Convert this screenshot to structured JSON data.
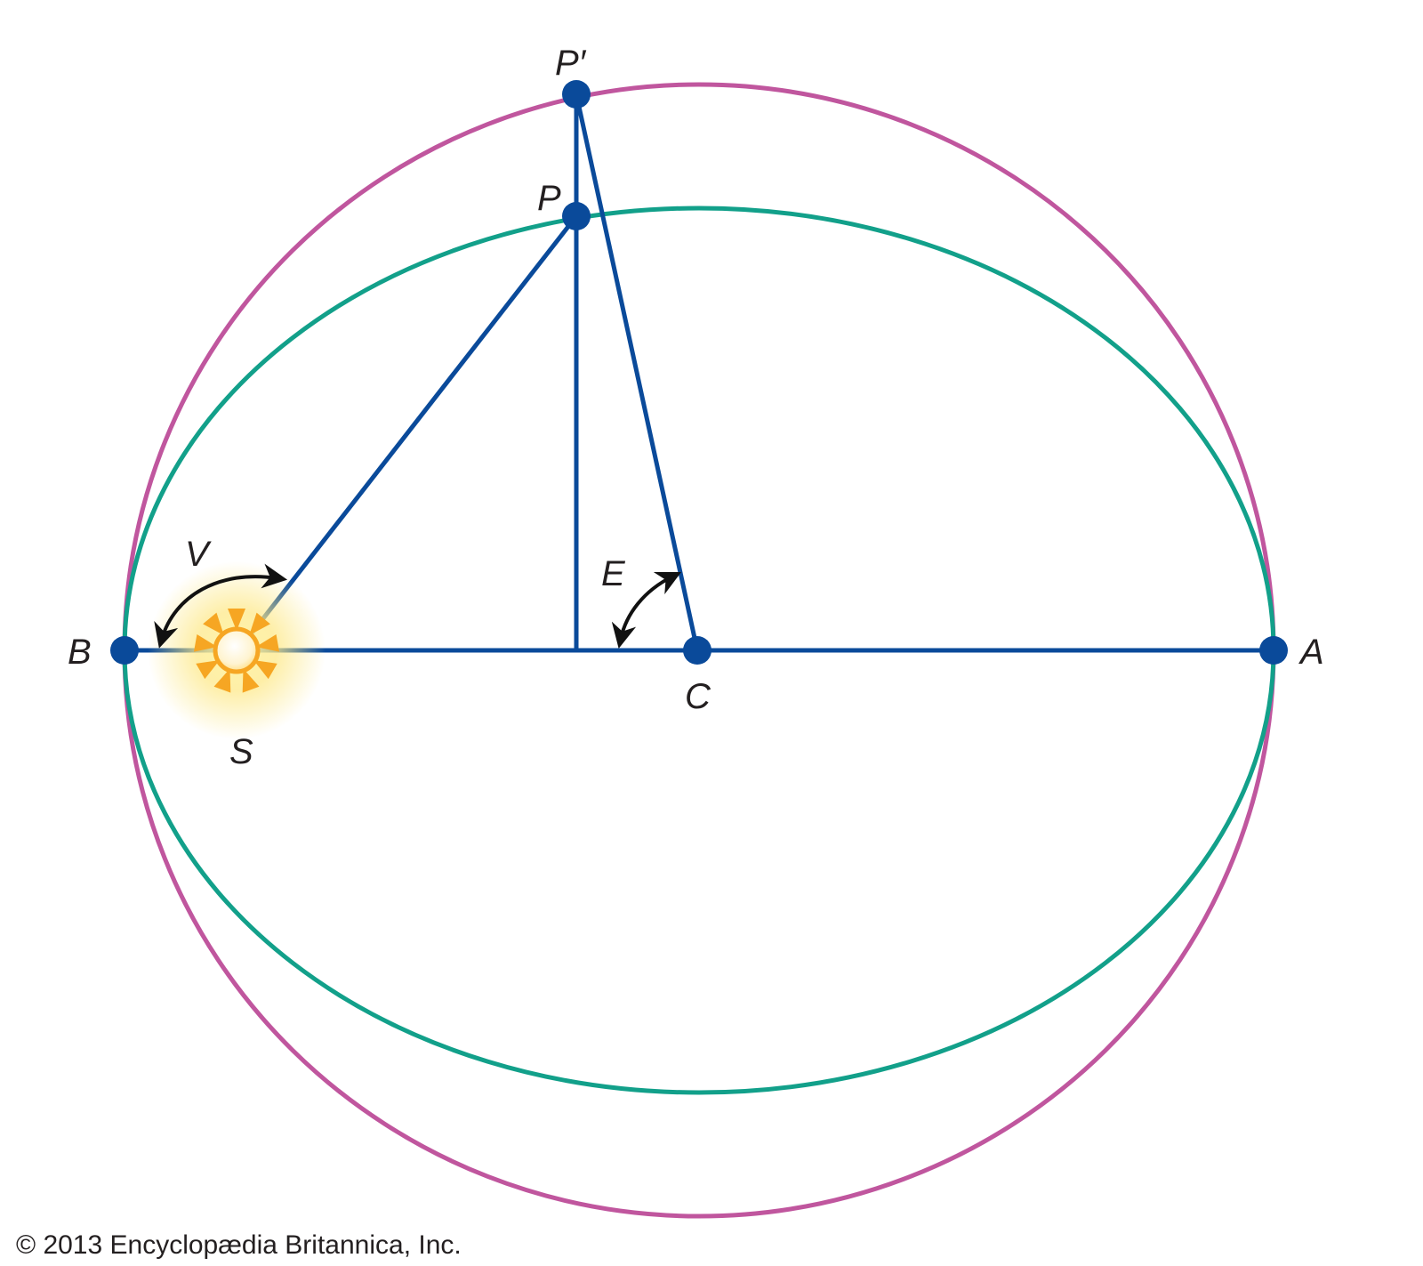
{
  "diagram": {
    "point_labels": {
      "p_prime": "P′",
      "p": "P",
      "b": "B",
      "a": "A",
      "c": "C",
      "s": "S",
      "v": "V",
      "e": "E"
    },
    "colors": {
      "auxiliary_circle": "#c0569e",
      "ellipse": "#12a08a",
      "lines": "#0a4a9a",
      "points": "#0a4a9a",
      "sun": "#f6a623",
      "arrows": "#111111",
      "labels": "#231f20"
    },
    "icons": {
      "sun": "sun-icon",
      "true-anomaly-arrow": "curved-double-arrow-icon",
      "eccentric-anomaly-arrow": "curved-double-arrow-icon"
    }
  },
  "footer": {
    "copyright": "© 2013 Encyclopædia Britannica, Inc."
  }
}
